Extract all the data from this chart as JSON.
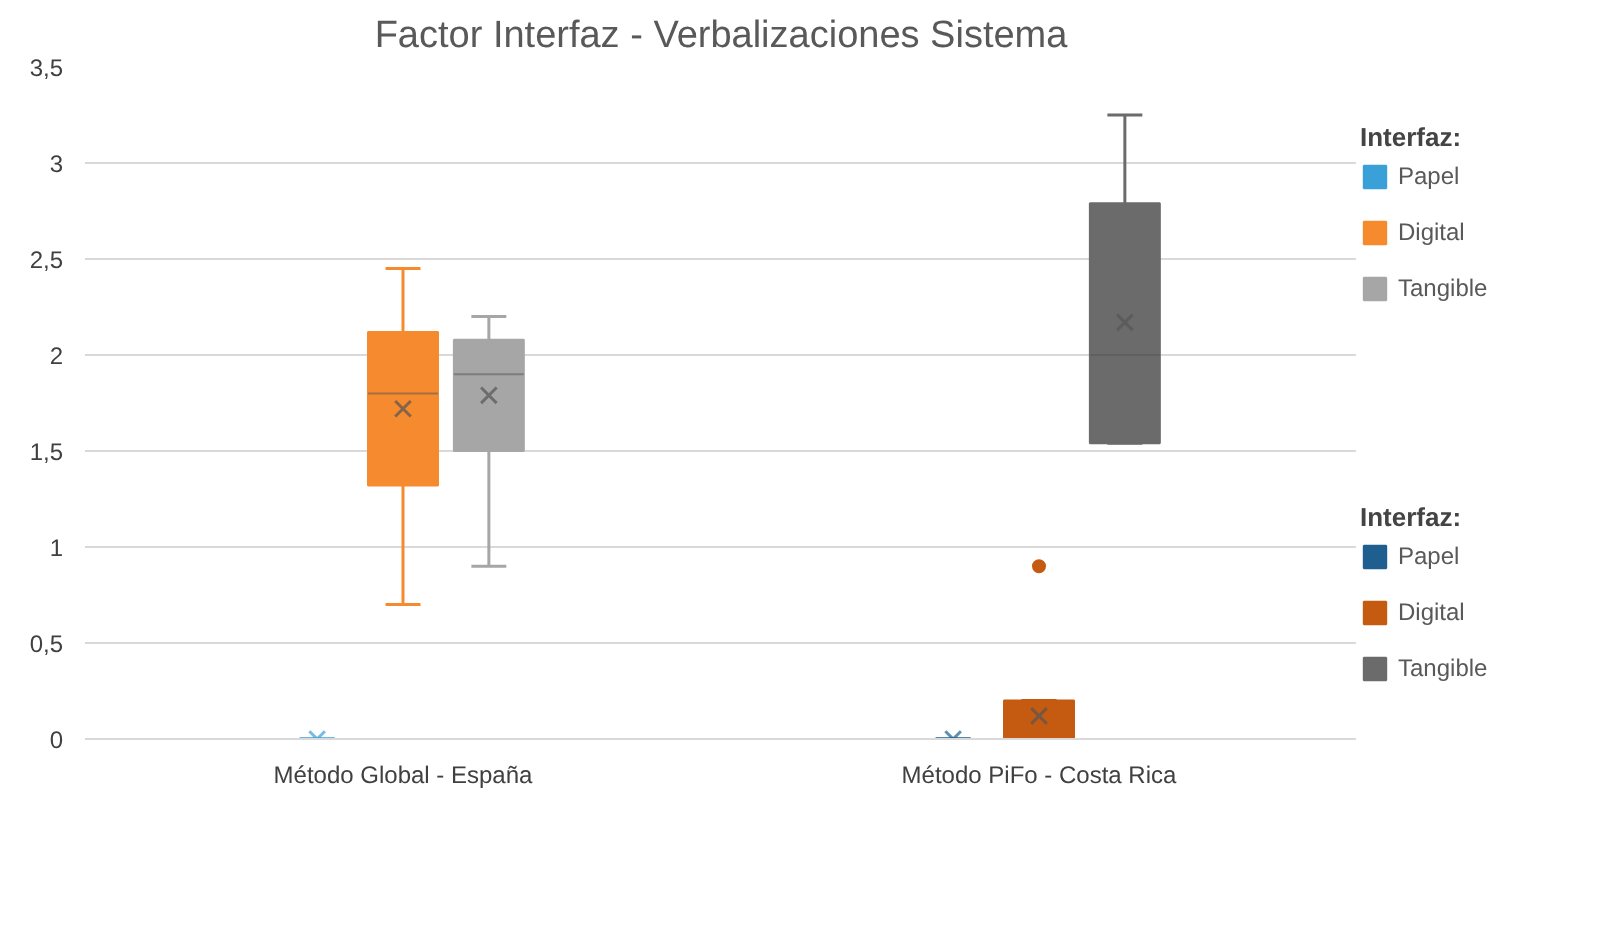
{
  "chart_data": {
    "type": "box",
    "title": "Factor Interfaz - Verbalizaciones Sistema",
    "legend_title": "Interfaz:",
    "categories": [
      "Método Global - España",
      "Método PiFo - Costa Rica"
    ],
    "ylim": [
      0,
      3.5
    ],
    "yticks": [
      0,
      {
        "value": 0.5,
        "label": "0,5"
      },
      1,
      {
        "value": 1.5,
        "label": "1,5"
      },
      2,
      {
        "value": 2.5,
        "label": "2,5"
      },
      3,
      {
        "value": 3.5,
        "label": "3,5"
      }
    ],
    "grid": "y",
    "legend": "right",
    "series": [
      {
        "name": "Papel",
        "color": "#3aa0d8",
        "boxes": [
          {
            "low": 0,
            "q1": 0,
            "median": 0,
            "q3": 0,
            "high": 0,
            "mean": 0
          },
          null
        ]
      },
      {
        "name": "Digital",
        "color": "#f58a2e",
        "boxes": [
          {
            "low": 0.7,
            "q1": 1.32,
            "median": 1.8,
            "q3": 2.12,
            "high": 2.45,
            "mean": 1.72
          },
          null
        ]
      },
      {
        "name": "Tangible",
        "color": "#a6a6a6",
        "boxes": [
          {
            "low": 0.9,
            "q1": 1.5,
            "median": 1.9,
            "q3": 2.08,
            "high": 2.2,
            "mean": 1.79
          },
          null
        ]
      },
      {
        "name": "Papel",
        "color": "#1f5f8f",
        "boxes": [
          null,
          {
            "low": 0,
            "q1": 0,
            "median": 0,
            "q3": 0,
            "high": 0,
            "mean": 0
          }
        ]
      },
      {
        "name": "Digital",
        "color": "#c55a11",
        "boxes": [
          null,
          {
            "low": 0,
            "q1": 0,
            "median": 0,
            "q3": 0.2,
            "high": 0.2,
            "mean": 0.12,
            "outliers": [
              0.9
            ]
          }
        ]
      },
      {
        "name": "Tangible",
        "color": "#6b6b6b",
        "boxes": [
          null,
          {
            "low": 1.54,
            "q1": 1.54,
            "median": 2.0,
            "q3": 2.79,
            "high": 3.25,
            "mean": 2.17
          }
        ]
      }
    ]
  }
}
